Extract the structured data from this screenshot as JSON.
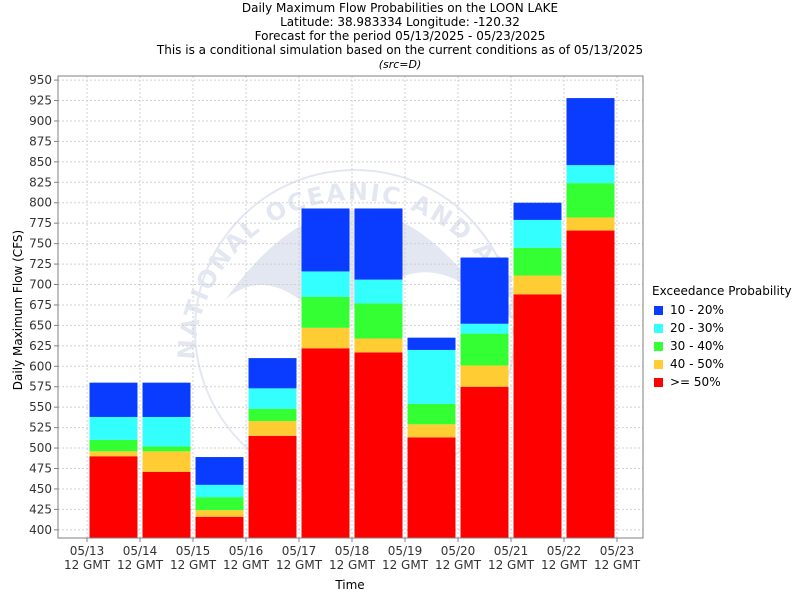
{
  "header": {
    "title": "Daily Maximum Flow Probabilities on the LOON LAKE",
    "location": "Latitude: 38.983334 Longitude: -120.32",
    "period": "Forecast for the period 05/13/2025 - 05/23/2025",
    "condition": "This is a conditional simulation based on the current conditions as of 05/13/2025",
    "source": "(src=D)"
  },
  "watermark": "NATIONAL OCEANIC AND ATMOSPHERIC ADMINISTRATION",
  "legend": {
    "title": "Exceedance Probability",
    "items": [
      {
        "label": "10 - 20%",
        "color": "#0a3cff"
      },
      {
        "label": "20 - 30%",
        "color": "#33ffff"
      },
      {
        "label": "30 - 40%",
        "color": "#33ff33"
      },
      {
        "label": "40 - 50%",
        "color": "#ffcc33"
      },
      {
        "label": ">= 50%",
        "color": "#ff0000"
      }
    ]
  },
  "chart_data": {
    "type": "bar",
    "stacked": true,
    "title": "Daily Maximum Flow Probabilities on the LOON LAKE",
    "xlabel": "Time",
    "ylabel": "Daily Maximum Flow (CFS)",
    "ylim": [
      390,
      955
    ],
    "yticks": [
      400,
      425,
      450,
      475,
      500,
      525,
      550,
      575,
      600,
      625,
      650,
      675,
      700,
      725,
      750,
      775,
      800,
      825,
      850,
      875,
      900,
      925,
      950
    ],
    "xticks": [
      [
        "05/13",
        "12 GMT"
      ],
      [
        "05/14",
        "12 GMT"
      ],
      [
        "05/15",
        "12 GMT"
      ],
      [
        "05/16",
        "12 GMT"
      ],
      [
        "05/17",
        "12 GMT"
      ],
      [
        "05/18",
        "12 GMT"
      ],
      [
        "05/19",
        "12 GMT"
      ],
      [
        "05/20",
        "12 GMT"
      ],
      [
        "05/21",
        "12 GMT"
      ],
      [
        "05/22",
        "12 GMT"
      ],
      [
        "05/23",
        "12 GMT"
      ]
    ],
    "grid": true,
    "legend_position": "right",
    "bars": [
      {
        "period": "05/13 - 05/14",
        "p50": 490,
        "p40": 496,
        "p30": 510,
        "p20": 538,
        "p10": 580
      },
      {
        "period": "05/14 - 05/15",
        "p50": 471,
        "p40": 496,
        "p30": 502,
        "p20": 538,
        "p10": 580
      },
      {
        "period": "05/15 - 05/16",
        "p50": 416,
        "p40": 424,
        "p30": 440,
        "p20": 455,
        "p10": 489
      },
      {
        "period": "05/16 - 05/17",
        "p50": 515,
        "p40": 533,
        "p30": 548,
        "p20": 573,
        "p10": 610
      },
      {
        "period": "05/17 - 05/18",
        "p50": 622,
        "p40": 647,
        "p30": 685,
        "p20": 716,
        "p10": 793
      },
      {
        "period": "05/18 - 05/19",
        "p50": 617,
        "p40": 634,
        "p30": 677,
        "p20": 706,
        "p10": 793
      },
      {
        "period": "05/19 - 05/20",
        "p50": 513,
        "p40": 529,
        "p30": 554,
        "p20": 620,
        "p10": 635
      },
      {
        "period": "05/20 - 05/21",
        "p50": 575,
        "p40": 601,
        "p30": 640,
        "p20": 652,
        "p10": 733
      },
      {
        "period": "05/21 - 05/22",
        "p50": 688,
        "p40": 711,
        "p30": 745,
        "p20": 779,
        "p10": 800
      },
      {
        "period": "05/22 - 05/23",
        "p50": 766,
        "p40": 782,
        "p30": 824,
        "p20": 846,
        "p10": 928
      }
    ]
  }
}
